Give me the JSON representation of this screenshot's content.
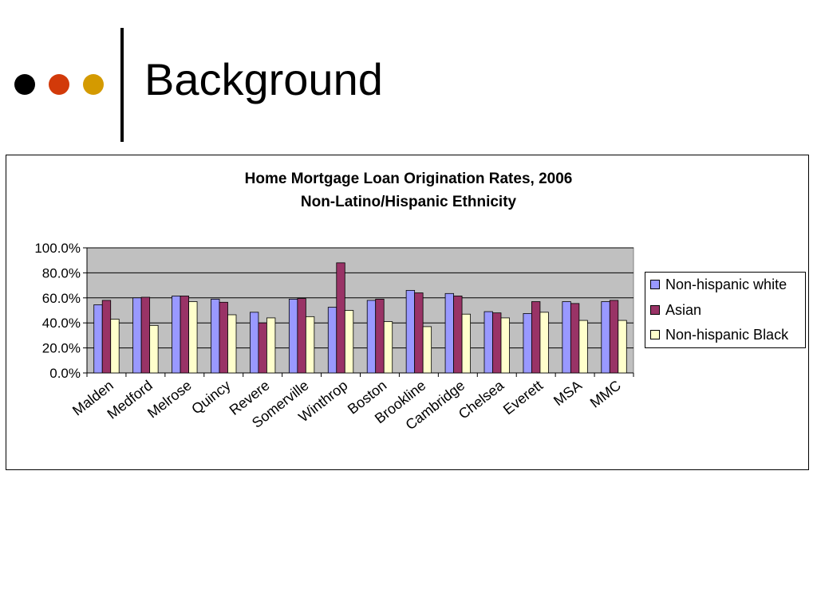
{
  "slide": {
    "title": "Background",
    "bullet_dots": [
      {
        "name": "black-dot-icon",
        "color": "#000000"
      },
      {
        "name": "red-dot-icon",
        "color": "#d23a0a"
      },
      {
        "name": "gold-dot-icon",
        "color": "#d49a00"
      }
    ]
  },
  "chart_data": {
    "type": "bar",
    "title": "Home Mortgage Loan Origination Rates, 2006",
    "subtitle": "Non-Latino/Hispanic Ethnicity",
    "categories": [
      "Malden",
      "Medford",
      "Melrose",
      "Quincy",
      "Revere",
      "Somerville",
      "Winthrop",
      "Boston",
      "Brookline",
      "Cambridge",
      "Chelsea",
      "Everett",
      "MSA",
      "MMC"
    ],
    "series": [
      {
        "name": "Non-hispanic white",
        "color": "#9999ff",
        "values": [
          54.5,
          60.0,
          61.5,
          59.0,
          48.5,
          59.0,
          52.5,
          58.0,
          66.0,
          63.5,
          49.0,
          47.5,
          57.0,
          57.0
        ]
      },
      {
        "name": "Asian",
        "color": "#993366",
        "values": [
          58.0,
          60.5,
          61.5,
          56.5,
          40.0,
          59.5,
          88.0,
          59.0,
          64.0,
          61.5,
          48.0,
          57.0,
          55.5,
          58.0
        ]
      },
      {
        "name": "Non-hispanic Black",
        "color": "#ffffcc",
        "values": [
          43.0,
          38.0,
          57.0,
          46.5,
          44.0,
          45.0,
          50.0,
          41.0,
          37.0,
          47.0,
          44.0,
          48.5,
          42.0,
          42.0
        ]
      }
    ],
    "ylim": [
      0,
      100
    ],
    "yticks": [
      0,
      20,
      40,
      60,
      80,
      100
    ],
    "ytick_labels": [
      "0.0%",
      "20.0%",
      "40.0%",
      "60.0%",
      "80.0%",
      "100.0%"
    ],
    "grid": true,
    "plot_background": "#c0c0c0",
    "legend_position": "right"
  }
}
